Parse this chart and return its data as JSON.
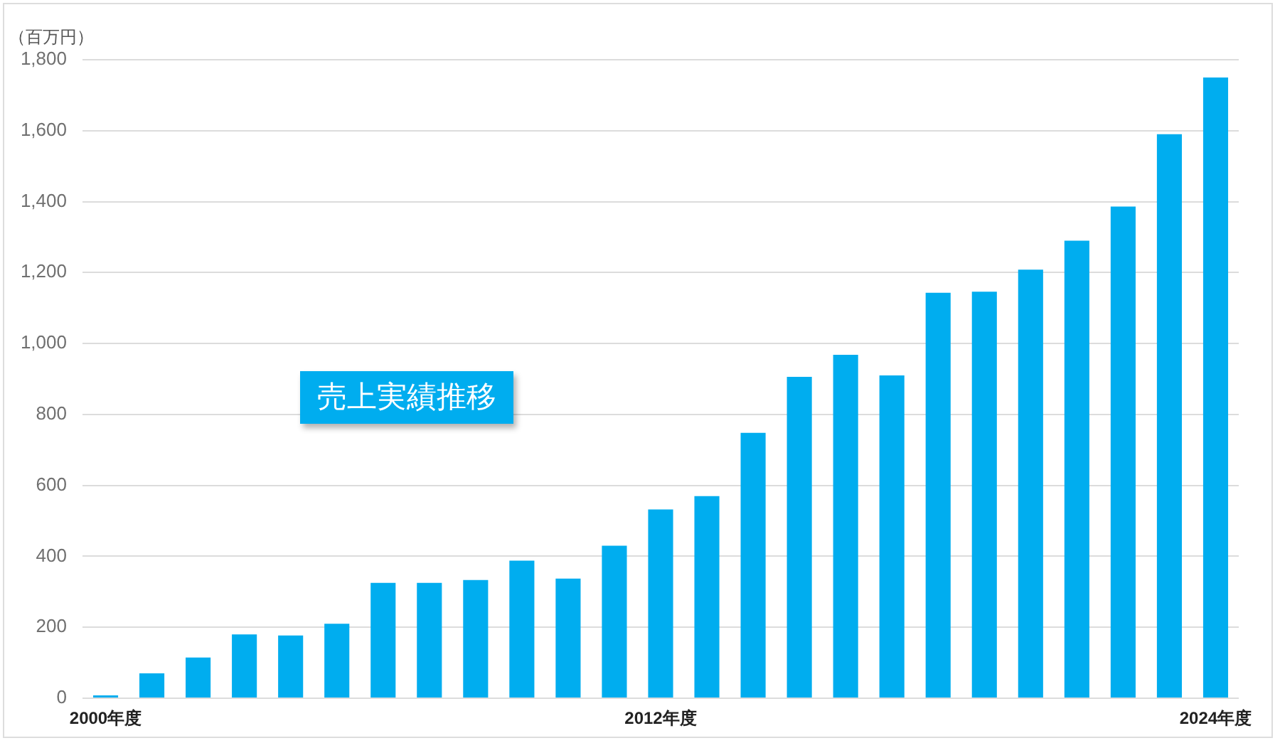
{
  "chart_data": {
    "type": "bar",
    "title": "売上実績推移",
    "ylabel": "（百万円）",
    "categories": [
      "2000年度",
      null,
      null,
      null,
      null,
      null,
      null,
      null,
      null,
      null,
      null,
      null,
      "2012年度",
      null,
      null,
      null,
      null,
      null,
      null,
      null,
      null,
      null,
      null,
      null,
      "2024年度"
    ],
    "values": [
      8,
      70,
      115,
      180,
      177,
      210,
      325,
      325,
      333,
      388,
      337,
      430,
      532,
      570,
      748,
      906,
      968,
      910,
      1143,
      1146,
      1208,
      1290,
      1386,
      1590,
      1750
    ],
    "color": "#00adef",
    "ylim": [
      0,
      1800
    ],
    "yticks": [
      0,
      200,
      400,
      600,
      800,
      {
        "value": 1000,
        "label": "1,000"
      },
      {
        "value": 1200,
        "label": "1,200"
      },
      {
        "value": 1400,
        "label": "1,400"
      },
      {
        "value": 1600,
        "label": "1,600"
      },
      {
        "value": 1800,
        "label": "1,800"
      }
    ],
    "grid": "y"
  }
}
